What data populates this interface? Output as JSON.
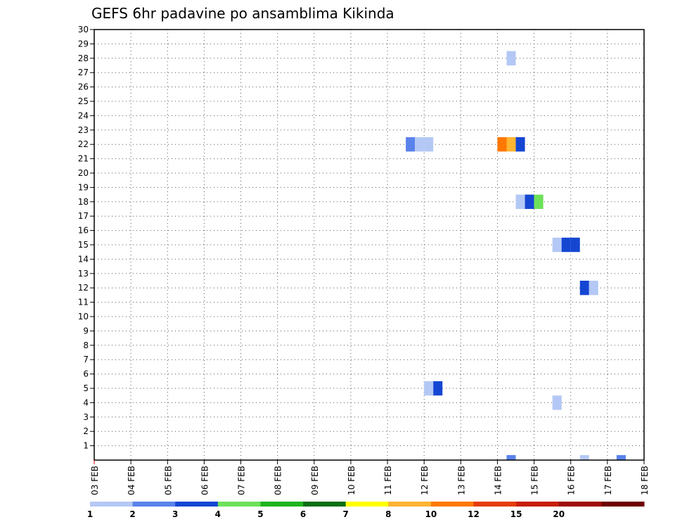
{
  "chart_data": {
    "type": "heatmap",
    "title": "GEFS 6hr padavine po ansamblima Kikinda",
    "xlabel": "",
    "ylabel": "",
    "x_ticks": [
      "03 FEB",
      "04 FEB",
      "05 FEB",
      "06 FEB",
      "07 FEB",
      "08 FEB",
      "09 FEB",
      "10 FEB",
      "11 FEB",
      "12 FEB",
      "13 FEB",
      "14 FEB",
      "15 FEB",
      "16 FEB",
      "17 FEB",
      "18 FEB"
    ],
    "y_ticks": [
      "1",
      "2",
      "3",
      "4",
      "5",
      "6",
      "7",
      "8",
      "9",
      "10",
      "11",
      "12",
      "13",
      "14",
      "15",
      "16",
      "17",
      "18",
      "19",
      "20",
      "21",
      "22",
      "23",
      "24",
      "25",
      "26",
      "27",
      "28",
      "29",
      "30"
    ],
    "xlim": [
      0,
      15
    ],
    "ylim": [
      0,
      30
    ],
    "grid": true,
    "cell_width_days": 0.25,
    "legend_bins": [
      {
        "label": "1",
        "color": "#b4c8f5"
      },
      {
        "label": "2",
        "color": "#5a82eb"
      },
      {
        "label": "3",
        "color": "#1446d2"
      },
      {
        "label": "4",
        "color": "#6ee15a"
      },
      {
        "label": "5",
        "color": "#1eb41e"
      },
      {
        "label": "6",
        "color": "#0a6e14"
      },
      {
        "label": "7",
        "color": "#ffff00"
      },
      {
        "label": "8",
        "color": "#ffb432"
      },
      {
        "label": "10",
        "color": "#ff7800"
      },
      {
        "label": "12",
        "color": "#e63c0a"
      },
      {
        "label": "15",
        "color": "#c81e0a"
      },
      {
        "label": "20",
        "color": "#a00a0a"
      },
      {
        "label": "",
        "color": "#6e0000"
      }
    ],
    "cells": [
      {
        "x": 11.25,
        "member": 0,
        "bin": 1
      },
      {
        "x": 13.25,
        "member": 0,
        "bin": 0
      },
      {
        "x": 14.25,
        "member": 0,
        "bin": 1
      },
      {
        "x": 9.0,
        "member": 5,
        "bin": 0
      },
      {
        "x": 9.25,
        "member": 5,
        "bin": 2
      },
      {
        "x": 12.5,
        "member": 4,
        "bin": 0
      },
      {
        "x": 13.25,
        "member": 12,
        "bin": 2
      },
      {
        "x": 13.5,
        "member": 12,
        "bin": 0
      },
      {
        "x": 12.5,
        "member": 15,
        "bin": 0
      },
      {
        "x": 12.75,
        "member": 15,
        "bin": 2
      },
      {
        "x": 13.0,
        "member": 15,
        "bin": 2
      },
      {
        "x": 11.5,
        "member": 18,
        "bin": 0
      },
      {
        "x": 11.75,
        "member": 18,
        "bin": 2
      },
      {
        "x": 12.0,
        "member": 18,
        "bin": 3
      },
      {
        "x": 8.5,
        "member": 22,
        "bin": 1
      },
      {
        "x": 8.75,
        "member": 22,
        "bin": 0
      },
      {
        "x": 9.0,
        "member": 22,
        "bin": 0
      },
      {
        "x": 11.0,
        "member": 22,
        "bin": 8
      },
      {
        "x": 11.25,
        "member": 22,
        "bin": 7
      },
      {
        "x": 11.5,
        "member": 22,
        "bin": 2
      },
      {
        "x": 11.25,
        "member": 28,
        "bin": 0
      }
    ]
  }
}
